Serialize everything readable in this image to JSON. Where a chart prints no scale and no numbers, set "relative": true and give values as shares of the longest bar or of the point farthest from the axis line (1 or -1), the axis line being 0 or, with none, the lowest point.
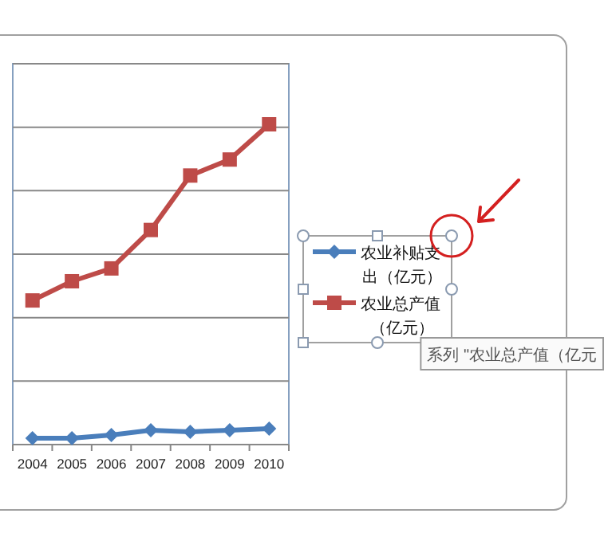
{
  "chart_data": {
    "type": "line",
    "relative": true,
    "categories": [
      "2004",
      "2005",
      "2006",
      "2007",
      "2008",
      "2009",
      "2010"
    ],
    "series": [
      {
        "name": "农业补贴支出（亿元）",
        "color": "#4a7ebb",
        "marker": "diamond",
        "values": [
          0.02,
          0.02,
          0.03,
          0.045,
          0.04,
          0.045,
          0.05
        ]
      },
      {
        "name": "农业总产值（亿元）",
        "color": "#be4b48",
        "marker": "square",
        "values": [
          0.45,
          0.51,
          0.55,
          0.67,
          0.84,
          0.89,
          1
        ]
      }
    ],
    "grid": "y",
    "legend": "right",
    "annotations": [
      "系列 \"农业总产值（亿元"
    ]
  }
}
